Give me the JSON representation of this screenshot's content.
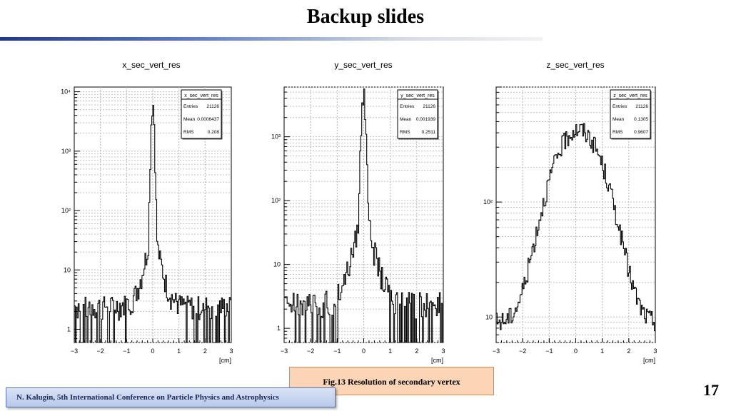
{
  "slide": {
    "title": "Backup slides",
    "caption": "Fig.13 Resolution of secondary vertex",
    "footer": "N. Kalugin, 5th International Conference on Particle Physics and Astrophysics",
    "page_number": "17"
  },
  "chart_data": [
    {
      "type": "histogram",
      "title": "x_sec_vert_res",
      "xunit": "[cm]",
      "xlim": [
        -3,
        3
      ],
      "y_log": true,
      "x_ticks": [
        "−3",
        "−2",
        "−1",
        "0",
        "1",
        "2",
        "3"
      ],
      "y_ticks": [
        {
          "label": "1",
          "value": 1
        },
        {
          "label": "10",
          "value": 10
        },
        {
          "label": "10²",
          "value": 100
        },
        {
          "label": "10³",
          "value": 1000
        },
        {
          "label": "10⁴",
          "value": 10000
        }
      ],
      "stats": {
        "name": "x_sec_vert_res",
        "rows": [
          {
            "label": "Entries",
            "value": "21126"
          },
          {
            "label": "Mean",
            "value": "0.0006437"
          },
          {
            "label": "RMS",
            "value": "0.208"
          }
        ]
      },
      "profile": {
        "shape": "peak",
        "peak": 6500,
        "core_sigma": 0.045,
        "tail_amp": 60,
        "tail_sigma": 0.18,
        "background": 2.5
      }
    },
    {
      "type": "histogram",
      "title": "y_sec_vert_res",
      "xunit": "[cm]",
      "xlim": [
        -3,
        3
      ],
      "y_log": true,
      "x_ticks": [
        "−3",
        "−2",
        "−1",
        "0",
        "1",
        "2",
        "3"
      ],
      "y_ticks": [
        {
          "label": "1",
          "value": 1
        },
        {
          "label": "10",
          "value": 10
        },
        {
          "label": "10²",
          "value": 100
        },
        {
          "label": "10³",
          "value": 1000
        }
      ],
      "stats": {
        "name": "y_sec_vert_res",
        "rows": [
          {
            "label": "Entries",
            "value": "21126"
          },
          {
            "label": "Mean",
            "value": "0.001939"
          },
          {
            "label": "RMS",
            "value": "0.2511"
          }
        ]
      },
      "profile": {
        "shape": "peak",
        "peak": 4500,
        "core_sigma": 0.06,
        "tail_amp": 90,
        "tail_sigma": 0.22,
        "background": 2.5
      }
    },
    {
      "type": "histogram",
      "title": "z_sec_vert_res",
      "xunit": "[cm]",
      "xlim": [
        -3,
        3
      ],
      "y_log": true,
      "x_ticks": [
        "−3",
        "−2",
        "−1",
        "0",
        "1",
        "2",
        "3"
      ],
      "y_ticks": [
        {
          "label": "10",
          "value": 10
        },
        {
          "label": "10²",
          "value": 100
        }
      ],
      "stats": {
        "name": "z_sec_vert_res",
        "rows": [
          {
            "label": "Entries",
            "value": "21126"
          },
          {
            "label": "Mean",
            "value": "0.1305"
          },
          {
            "label": "RMS",
            "value": "0.9607"
          }
        ]
      },
      "profile": {
        "shape": "broad",
        "peak": 420,
        "center": 0.1,
        "core_sigma": 0.75,
        "tail_amp": 0,
        "tail_sigma": 1,
        "background": 0
      }
    }
  ]
}
